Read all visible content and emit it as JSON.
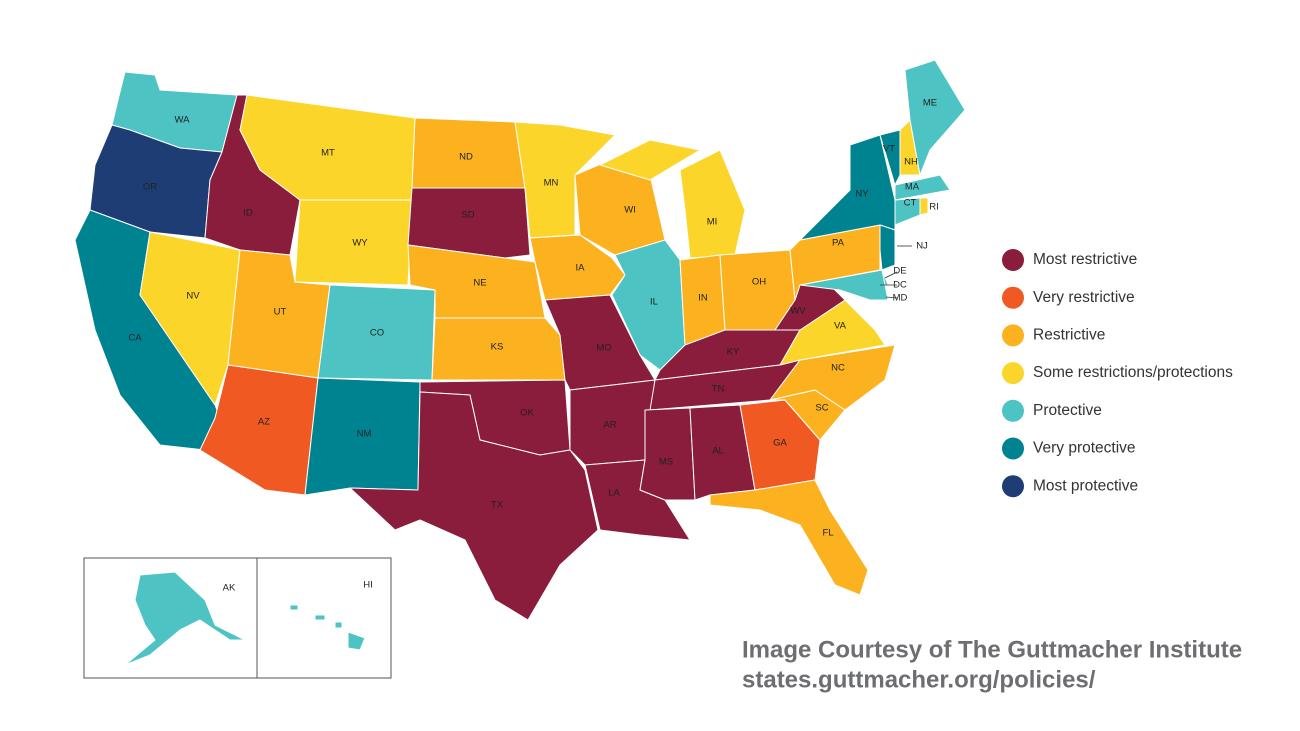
{
  "states": [
    {
      "label": "WA",
      "status": "Protective"
    },
    {
      "label": "OR",
      "status": "Most protective"
    },
    {
      "label": "CA",
      "status": "Very protective"
    },
    {
      "label": "NV",
      "status": "Some restrictions/protections"
    },
    {
      "label": "ID",
      "status": "Most restrictive"
    },
    {
      "label": "MT",
      "status": "Some restrictions/protections"
    },
    {
      "label": "WY",
      "status": "Some restrictions/protections"
    },
    {
      "label": "UT",
      "status": "Restrictive"
    },
    {
      "label": "AZ",
      "status": "Very restrictive"
    },
    {
      "label": "CO",
      "status": "Protective"
    },
    {
      "label": "NM",
      "status": "Very protective"
    },
    {
      "label": "ND",
      "status": "Restrictive"
    },
    {
      "label": "SD",
      "status": "Most restrictive"
    },
    {
      "label": "NE",
      "status": "Restrictive"
    },
    {
      "label": "KS",
      "status": "Restrictive"
    },
    {
      "label": "OK",
      "status": "Most restrictive"
    },
    {
      "label": "TX",
      "status": "Most restrictive"
    },
    {
      "label": "MN",
      "status": "Some restrictions/protections"
    },
    {
      "label": "IA",
      "status": "Restrictive"
    },
    {
      "label": "MO",
      "status": "Most restrictive"
    },
    {
      "label": "AR",
      "status": "Most restrictive"
    },
    {
      "label": "LA",
      "status": "Most restrictive"
    },
    {
      "label": "WI",
      "status": "Restrictive"
    },
    {
      "label": "IL",
      "status": "Protective"
    },
    {
      "label": "MI",
      "status": "Some restrictions/protections"
    },
    {
      "label": "IN",
      "status": "Restrictive"
    },
    {
      "label": "OH",
      "status": "Restrictive"
    },
    {
      "label": "KY",
      "status": "Most restrictive"
    },
    {
      "label": "TN",
      "status": "Most restrictive"
    },
    {
      "label": "MS",
      "status": "Most restrictive"
    },
    {
      "label": "AL",
      "status": "Most restrictive"
    },
    {
      "label": "GA",
      "status": "Very restrictive"
    },
    {
      "label": "FL",
      "status": "Restrictive"
    },
    {
      "label": "SC",
      "status": "Restrictive"
    },
    {
      "label": "NC",
      "status": "Restrictive"
    },
    {
      "label": "VA",
      "status": "Some restrictions/protections"
    },
    {
      "label": "WV",
      "status": "Most restrictive"
    },
    {
      "label": "PA",
      "status": "Restrictive"
    },
    {
      "label": "NY",
      "status": "Very protective"
    },
    {
      "label": "NJ",
      "status": "Very protective"
    },
    {
      "label": "DE",
      "status": "Protective"
    },
    {
      "label": "MD",
      "status": "Protective"
    },
    {
      "label": "VT",
      "status": "Very protective"
    },
    {
      "label": "NH",
      "status": "Some restrictions/protections"
    },
    {
      "label": "ME",
      "status": "Protective"
    },
    {
      "label": "MA",
      "status": "Protective"
    },
    {
      "label": "CT",
      "status": "Protective"
    },
    {
      "label": "RI",
      "status": "Some restrictions/protections"
    },
    {
      "label": "AK",
      "status": "Protective"
    },
    {
      "label": "HI",
      "status": "Protective"
    },
    {
      "label": "DC",
      "status": "Protective"
    }
  ],
  "legend": [
    {
      "label": "Most restrictive",
      "color": "#8a1c3c"
    },
    {
      "label": "Very restrictive",
      "color": "#f05a22"
    },
    {
      "label": "Restrictive",
      "color": "#fbb21e"
    },
    {
      "label": "Some restrictions/protections",
      "color": "#fcd52b"
    },
    {
      "label": "Protective",
      "color": "#4dc3c4"
    },
    {
      "label": "Very protective",
      "color": "#008390"
    },
    {
      "label": "Most protective",
      "color": "#1f3d75"
    }
  ],
  "credit": [
    "Image Courtesy of The Guttmacher Institute",
    "states.guttmacher.org/policies/"
  ]
}
